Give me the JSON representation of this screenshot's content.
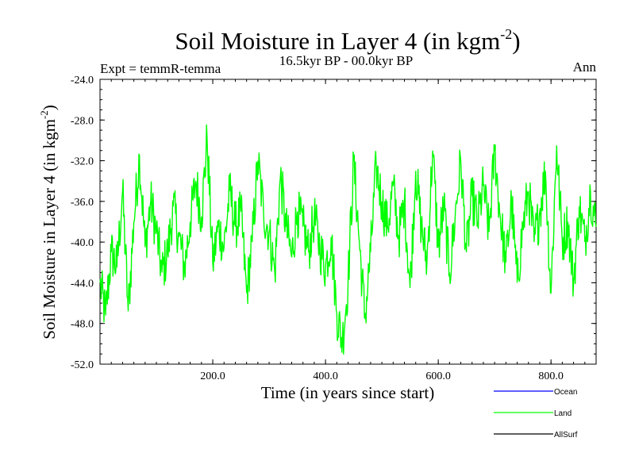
{
  "chart_data": {
    "type": "line",
    "title_main": "Soil Moisture in Layer 4 (in kgm",
    "title_sup": "-2",
    "title_close": ")",
    "subtitle": "16.5kyr BP - 00.0kyr BP",
    "expt_label": "Expt = temmR-temma",
    "season_label": "Ann",
    "xlabel": "Time (in years since start)",
    "ylabel_main": "Soil Moisture in Layer 4 (in kgm",
    "ylabel_sup": "-2",
    "ylabel_close": ")",
    "xlim": [
      0,
      880
    ],
    "ylim": [
      -52.0,
      -24.0
    ],
    "x_ticks": [
      {
        "value": 200,
        "label": "200.0"
      },
      {
        "value": 400,
        "label": "400.0"
      },
      {
        "value": 600,
        "label": "600.0"
      },
      {
        "value": 800,
        "label": "800.0"
      }
    ],
    "y_ticks": [
      {
        "value": -24,
        "label": "-24.0"
      },
      {
        "value": -28,
        "label": "-28.0"
      },
      {
        "value": -32,
        "label": "-32.0"
      },
      {
        "value": -36,
        "label": "-36.0"
      },
      {
        "value": -40,
        "label": "-40.0"
      },
      {
        "value": -44,
        "label": "-44.0"
      },
      {
        "value": -48,
        "label": "-48.0"
      },
      {
        "value": -52,
        "label": "-52.0"
      }
    ],
    "legend": [
      {
        "name": "Ocean",
        "color": "#0000ff"
      },
      {
        "name": "Land",
        "color": "#00ff00"
      },
      {
        "name": "AllSurf",
        "color": "#000000"
      }
    ],
    "series": [
      {
        "name": "Land",
        "color": "#00ff00",
        "x_start": 0,
        "x_step": 10,
        "values": [
          -44.0,
          -47.2,
          -41.0,
          -42.5,
          -35.0,
          -46.8,
          -38.0,
          -31.5,
          -40.5,
          -36.0,
          -39.0,
          -43.0,
          -41.0,
          -36.5,
          -39.5,
          -42.5,
          -38.0,
          -34.0,
          -37.5,
          -29.8,
          -42.0,
          -38.5,
          -40.5,
          -35.0,
          -38.5,
          -37.0,
          -45.0,
          -40.0,
          -32.0,
          -37.0,
          -39.0,
          -43.0,
          -33.5,
          -38.5,
          -41.5,
          -37.0,
          -38.5,
          -41.0,
          -37.5,
          -40.5,
          -42.5,
          -39.5,
          -47.0,
          -49.8,
          -44.0,
          -32.0,
          -40.0,
          -47.5,
          -41.0,
          -32.5,
          -36.0,
          -38.5,
          -34.5,
          -39.5,
          -36.0,
          -44.5,
          -33.0,
          -38.5,
          -42.0,
          -31.0,
          -40.5,
          -36.5,
          -43.0,
          -37.5,
          -32.0,
          -41.0,
          -35.5,
          -38.0,
          -34.5,
          -39.0,
          -31.0,
          -37.5,
          -42.0,
          -36.0,
          -44.0,
          -38.5,
          -35.0,
          -40.0,
          -37.0,
          -33.0,
          -45.0,
          -30.5,
          -40.0,
          -38.0,
          -44.0,
          -36.5,
          -40.0,
          -35.0,
          -38.5
        ]
      },
      {
        "name": "Ocean",
        "color": "#0000ff",
        "values": []
      },
      {
        "name": "AllSurf",
        "color": "#000000",
        "values": []
      }
    ]
  }
}
